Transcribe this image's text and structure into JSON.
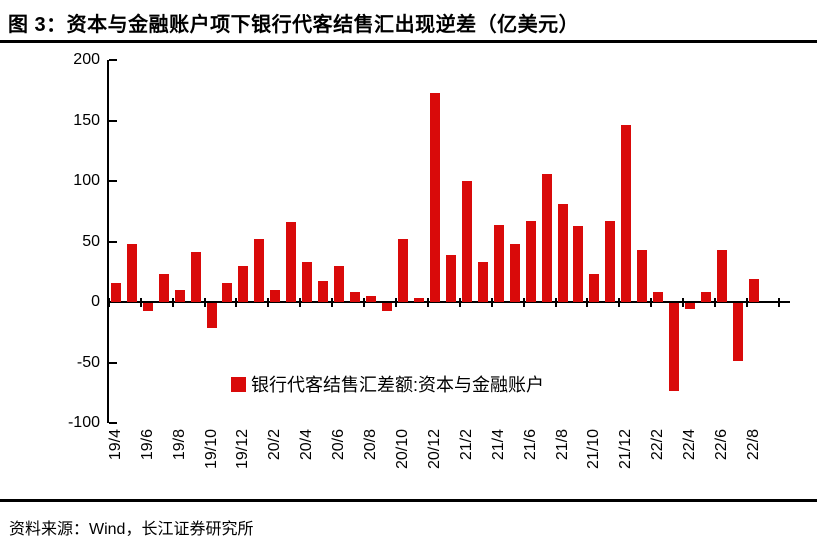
{
  "figure": {
    "title": "图 3：资本与金融账户项下银行代客结售汇出现逆差（亿美元）",
    "source": "资料来源：Wind，长江证券研究所"
  },
  "legend": {
    "label": "银行代客结售汇差额:资本与金融账户"
  },
  "colors": {
    "bar": "#D90A0A",
    "axis": "#000000",
    "background": "#FFFFFF",
    "text": "#000000"
  },
  "chart_data": {
    "type": "bar",
    "title": "资本与金融账户项下银行代客结售汇出现逆差",
    "unit": "亿美元",
    "series_name": "银行代客结售汇差额:资本与金融账户",
    "categories": [
      "19/4",
      "19/5",
      "19/6",
      "19/7",
      "19/8",
      "19/9",
      "19/10",
      "19/11",
      "19/12",
      "20/1",
      "20/2",
      "20/3",
      "20/4",
      "20/5",
      "20/6",
      "20/7",
      "20/8",
      "20/9",
      "20/10",
      "20/11",
      "20/12",
      "21/1",
      "21/2",
      "21/3",
      "21/4",
      "21/5",
      "21/6",
      "21/7",
      "21/8",
      "21/9",
      "21/10",
      "21/11",
      "21/12",
      "22/1",
      "22/2",
      "22/3",
      "22/4",
      "22/5",
      "22/6",
      "22/7",
      "22/8"
    ],
    "values": [
      16,
      48,
      -7,
      23,
      10,
      41,
      -21,
      16,
      30,
      52,
      10,
      66,
      33,
      17,
      30,
      8,
      5,
      -7,
      52,
      3,
      173,
      39,
      100,
      33,
      64,
      48,
      67,
      106,
      81,
      63,
      23,
      67,
      146,
      43,
      8,
      -73,
      -5,
      8,
      43,
      -48,
      19
    ],
    "x_tick_labels": [
      "19/4",
      "19/6",
      "19/8",
      "19/10",
      "19/12",
      "20/2",
      "20/4",
      "20/6",
      "20/8",
      "20/10",
      "20/12",
      "21/2",
      "21/4",
      "21/6",
      "21/8",
      "21/10",
      "21/12",
      "22/2",
      "22/4",
      "22/6",
      "22/8"
    ],
    "y_ticks": [
      200,
      150,
      100,
      50,
      0,
      -50,
      -100
    ],
    "ylim": [
      -100,
      200
    ],
    "grid": false,
    "legend_position": "bottom-center"
  }
}
